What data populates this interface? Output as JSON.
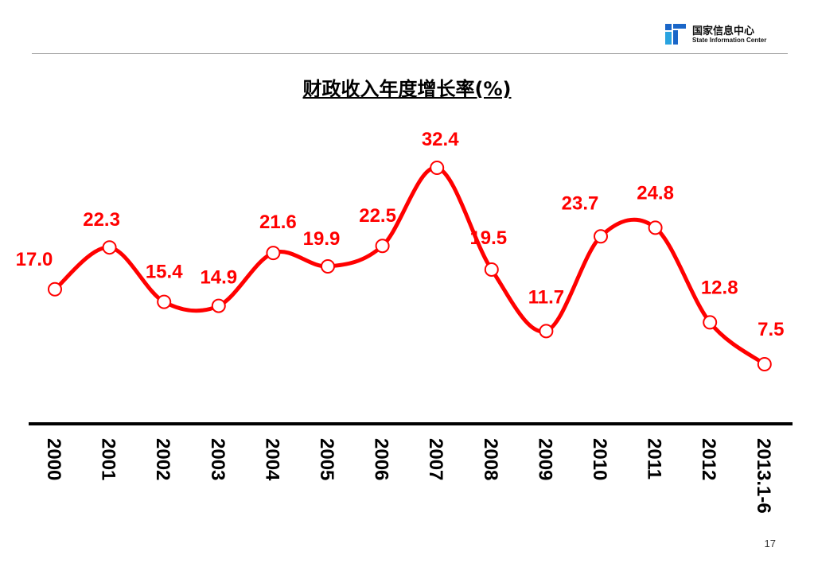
{
  "header": {
    "logo_cn": "国家信息中心",
    "logo_en": "State Information Center"
  },
  "page_number": "17",
  "colors": {
    "line": "#ff0000",
    "label": "#ff0000",
    "marker_fill": "#ffffff",
    "axis": "#000000"
  },
  "chart_data": {
    "type": "line",
    "title": "财政收入年度增长率(%)",
    "xlabel": "",
    "ylabel": "",
    "categories": [
      "2000",
      "2001",
      "2002",
      "2003",
      "2004",
      "2005",
      "2006",
      "2007",
      "2008",
      "2009",
      "2010",
      "2011",
      "2012",
      "2013.1-6"
    ],
    "series": [
      {
        "values": [
          17.0,
          22.3,
          15.4,
          14.9,
          21.6,
          19.9,
          22.5,
          32.4,
          19.5,
          11.7,
          23.7,
          24.8,
          12.8,
          7.5
        ]
      }
    ],
    "data_labels": [
      "17.0",
      "22.3",
      "15.4",
      "14.9",
      "21.6",
      "19.9",
      "22.5",
      "32.4",
      "19.5",
      "11.7",
      "23.7",
      "24.8",
      "12.8",
      "7.5"
    ],
    "ylim": [
      7.5,
      32.4
    ],
    "grid": false,
    "legend": "none",
    "smooth": true,
    "markers": "hollow-circle"
  }
}
